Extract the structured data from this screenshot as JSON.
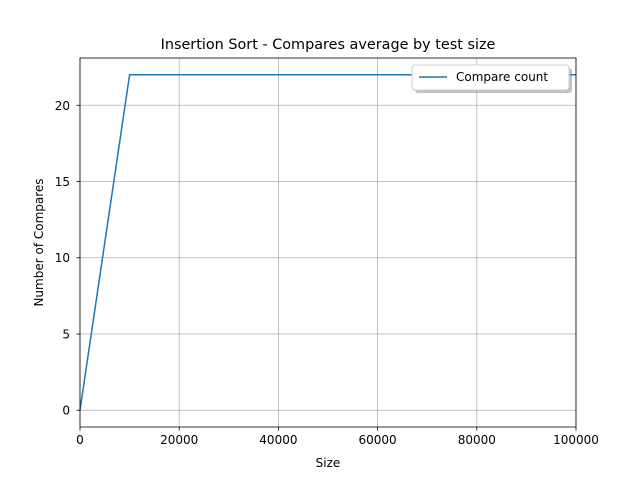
{
  "chart_data": {
    "type": "line",
    "title": "Insertion Sort - Compares average by test size",
    "xlabel": "Size",
    "ylabel": "Number of Compares",
    "xlim": [
      0,
      100000
    ],
    "ylim": [
      -1.1,
      23.1
    ],
    "xticks": [
      0,
      20000,
      40000,
      60000,
      80000,
      100000
    ],
    "yticks": [
      0,
      5,
      10,
      15,
      20
    ],
    "grid": true,
    "legend_position": "top-right",
    "series": [
      {
        "name": "Compare count",
        "color": "#1f77b4",
        "x": [
          0,
          10000,
          20000,
          30000,
          40000,
          50000,
          60000,
          70000,
          80000,
          90000,
          100000
        ],
        "y": [
          0,
          22,
          22,
          22,
          22,
          22,
          22,
          22,
          22,
          22,
          22
        ]
      }
    ]
  }
}
